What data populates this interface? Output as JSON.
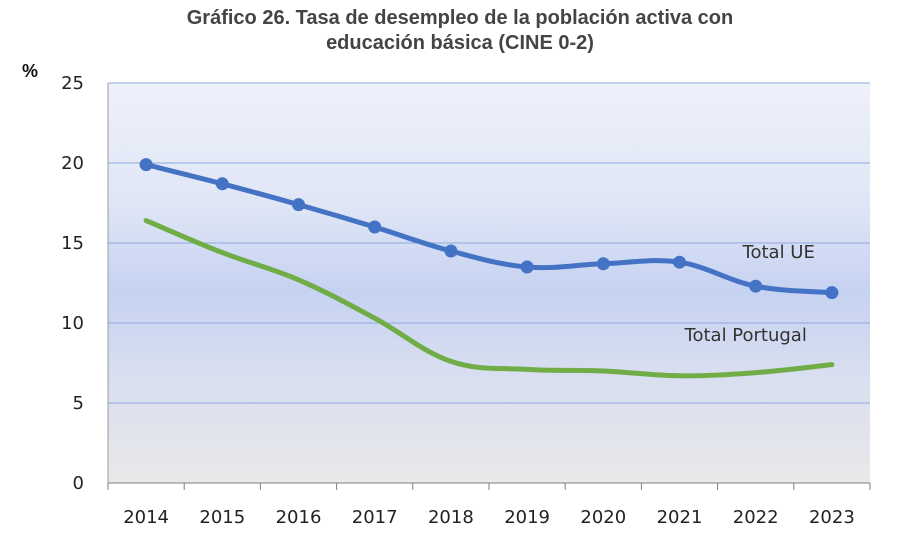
{
  "chart_data": {
    "type": "line",
    "title_line1": "Gráfico 26. Tasa de desempleo de la población activa con",
    "title_line2": "educación básica (CINE  0-2)",
    "ylabel": "%",
    "xlabel": "",
    "categories": [
      "2014",
      "2015",
      "2016",
      "2017",
      "2018",
      "2019",
      "2020",
      "2021",
      "2022",
      "2023"
    ],
    "ylim": [
      0,
      25
    ],
    "yticks": [
      "0",
      "5",
      "10",
      "15",
      "20",
      "25"
    ],
    "grid": true,
    "series": [
      {
        "name": "Total UE",
        "color": "#4472C4",
        "markers": true,
        "values": [
          19.9,
          18.7,
          17.4,
          16.0,
          14.5,
          13.5,
          13.7,
          13.8,
          12.3,
          11.9
        ]
      },
      {
        "name": "Total Portugal",
        "color": "#70AD47",
        "markers": false,
        "values": [
          16.4,
          14.4,
          12.7,
          10.3,
          7.6,
          7.1,
          7.0,
          6.7,
          6.9,
          7.4
        ]
      }
    ]
  }
}
